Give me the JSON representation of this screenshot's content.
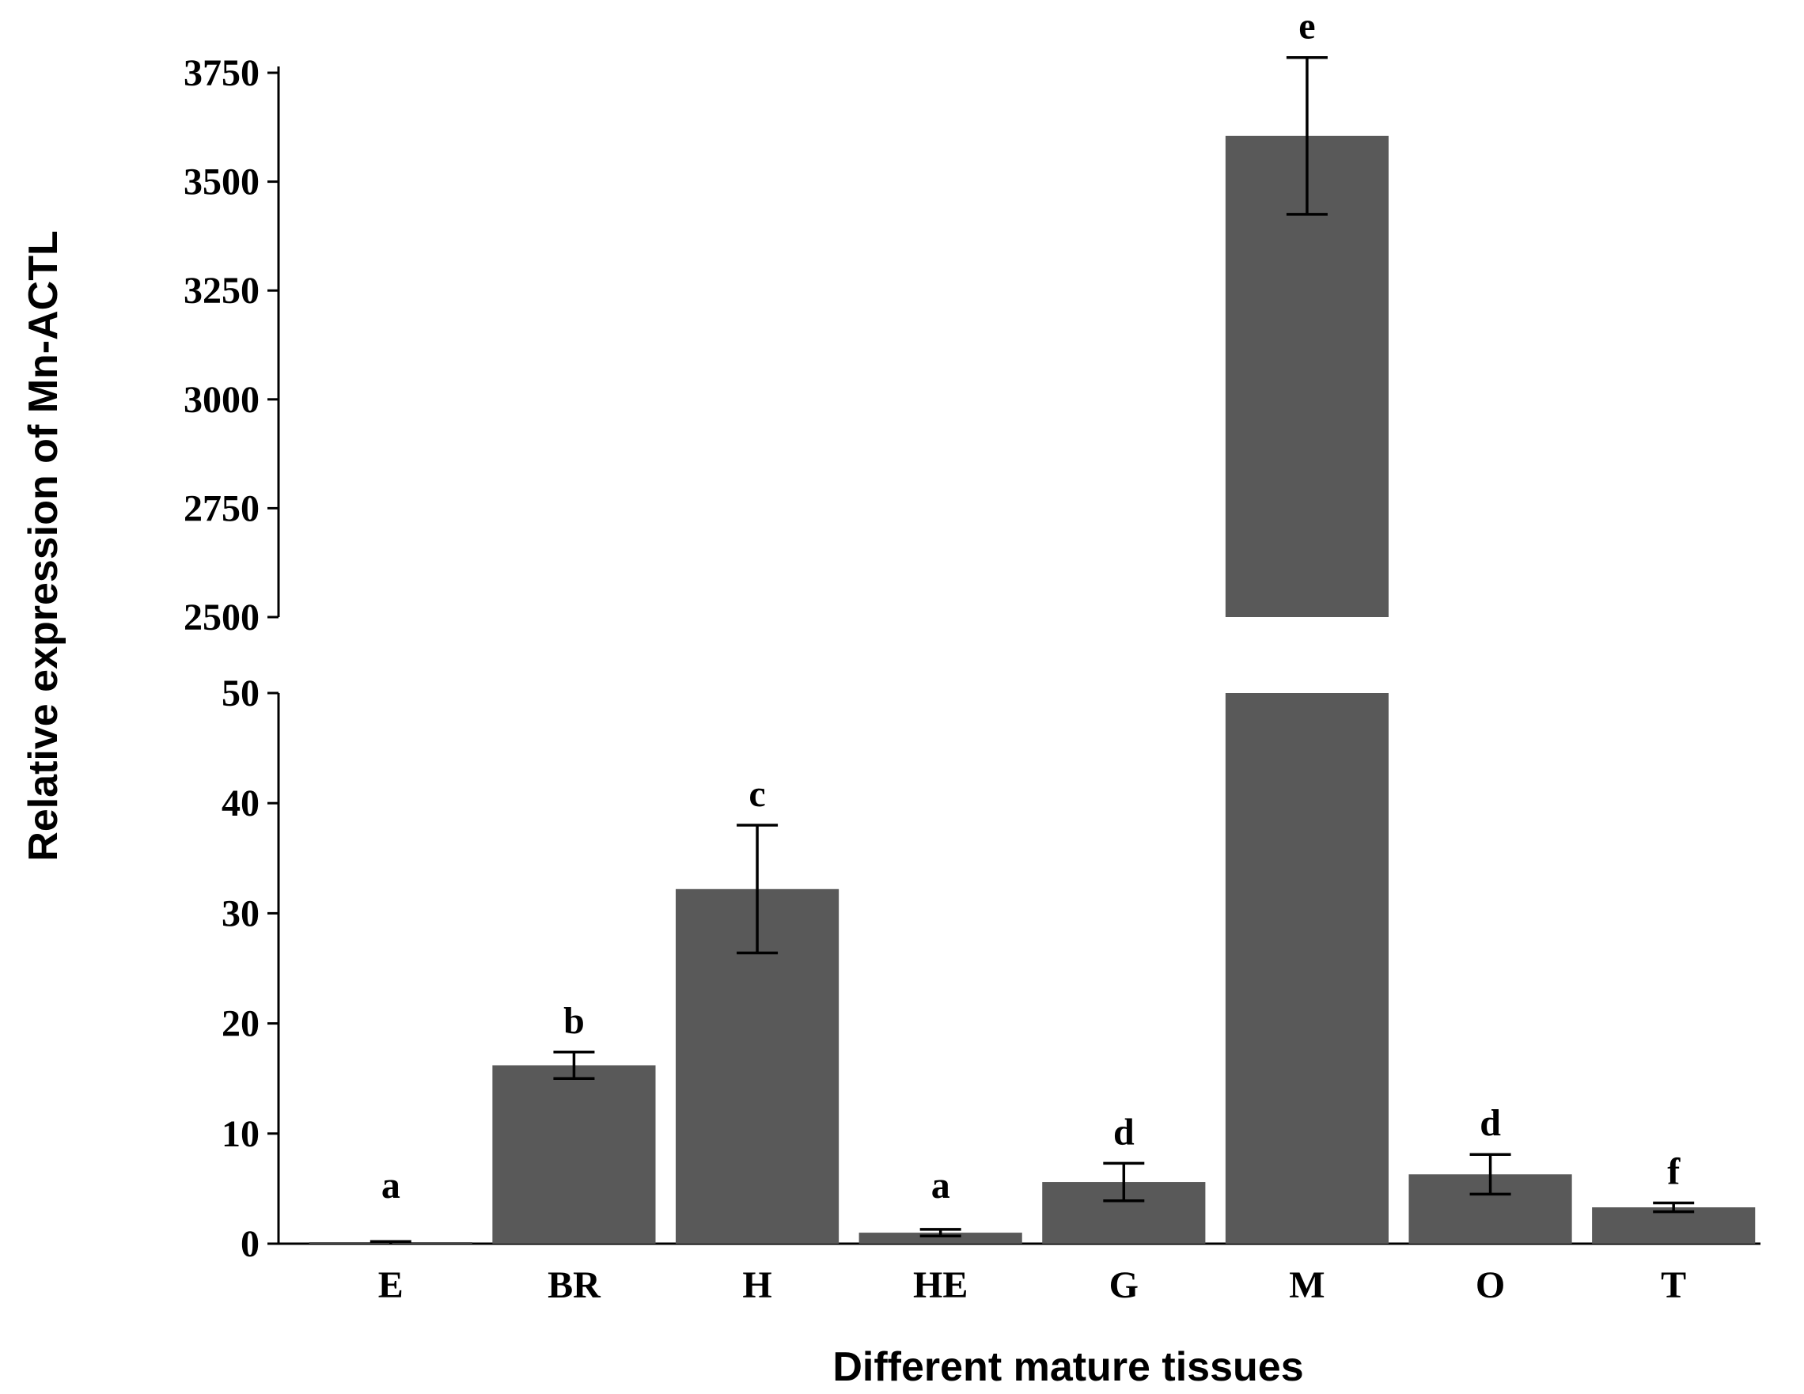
{
  "chart_data": {
    "type": "bar",
    "title": "",
    "xlabel": "Different mature tissues",
    "ylabel": "Relative expression of Mn-ACTL",
    "categories": [
      "E",
      "BR",
      "H",
      "HE",
      "G",
      "M",
      "O",
      "T"
    ],
    "values": [
      0.1,
      16.2,
      32.2,
      1.0,
      5.6,
      3605,
      6.3,
      3.3
    ],
    "errors": [
      0.1,
      1.2,
      5.8,
      0.3,
      1.7,
      180,
      1.8,
      0.4
    ],
    "significance": [
      "a",
      "b",
      "c",
      "a",
      "d",
      "e",
      "d",
      "f"
    ],
    "axis_break": {
      "lower_range": [
        0,
        50
      ],
      "upper_range": [
        2500,
        3750
      ]
    },
    "lower_ticks": [
      "0",
      "10",
      "20",
      "30",
      "40",
      "50"
    ],
    "upper_ticks": [
      "2500",
      "2750",
      "3000",
      "3250",
      "3500",
      "3750"
    ],
    "bar_color": "#595959",
    "grid": false,
    "legend": "none"
  }
}
